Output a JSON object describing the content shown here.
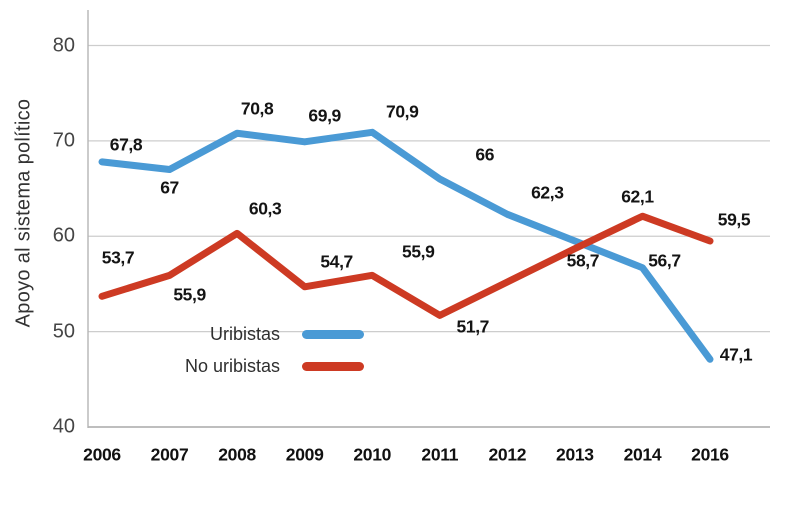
{
  "chart_data": {
    "type": "line",
    "title": "",
    "xlabel": "",
    "ylabel": "Apoyo al sistema político",
    "categories": [
      "2006",
      "2007",
      "2008",
      "2009",
      "2010",
      "2011",
      "2012",
      "2013",
      "2014",
      "2016"
    ],
    "yticks": [
      "80",
      "70",
      "60",
      "50",
      "40"
    ],
    "ylim": [
      40,
      84
    ],
    "grid": true,
    "legend_position": "inside-bottom-left",
    "series": [
      {
        "name": "Uribistas",
        "color": "#4A9AD5",
        "values": [
          67.8,
          67,
          70.8,
          69.9,
          70.9,
          66,
          62.3,
          59.5,
          56.7,
          47.1
        ],
        "labels": [
          "67,8",
          "67",
          "70,8",
          "69,9",
          "70,9",
          "66",
          "62,3",
          "",
          "56,7",
          "47,1"
        ]
      },
      {
        "name": "No uribistas",
        "color": "#CD3A23",
        "values": [
          53.7,
          55.9,
          60.3,
          54.7,
          55.9,
          51.7,
          55.2,
          58.7,
          62.1,
          59.5
        ],
        "labels": [
          "53,7",
          "55,9",
          "60,3",
          "54,7",
          "55,9",
          "51,7",
          "",
          "58,7",
          "62,1",
          "59,5"
        ]
      }
    ]
  },
  "legend": {
    "items": [
      {
        "label": "Uribistas",
        "color": "#4A9AD5"
      },
      {
        "label": "No uribistas",
        "color": "#CD3A23"
      }
    ]
  },
  "colors": {
    "gridline": "#cdcdcd",
    "axis_line": "#a8a8a8"
  }
}
